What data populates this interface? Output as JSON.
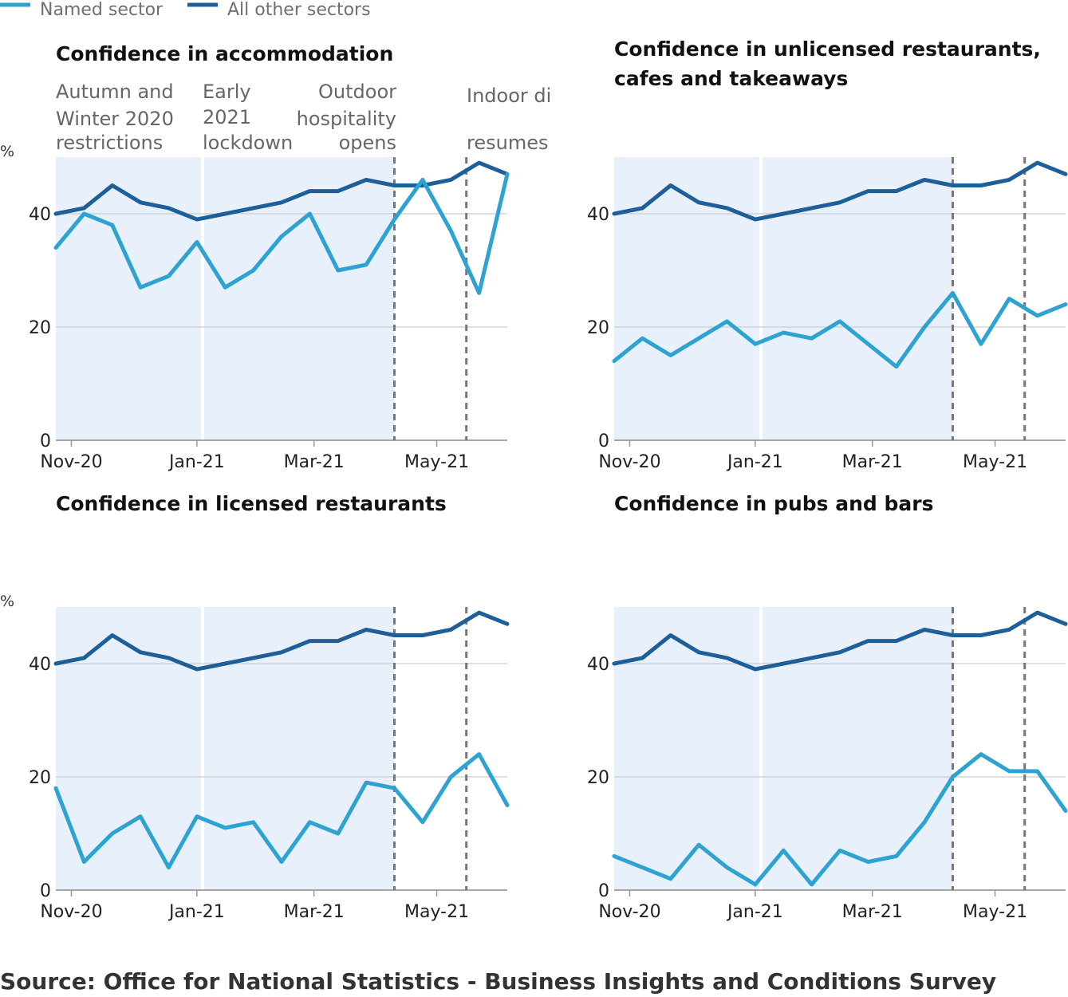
{
  "legend": [
    {
      "label": "Named sector",
      "color": "#2ea3d2"
    },
    {
      "label": "All other sectors",
      "color": "#1f5f99"
    }
  ],
  "source": "Source: Office for National Statistics - Business Insights and Conditions Survey",
  "colors": {
    "named": "#2ea3d2",
    "other": "#1f5f99",
    "shade": "#e8f1fb",
    "grid": "#cccccc",
    "dash": "#777777"
  },
  "annotations": [
    {
      "lines": [
        "Autumn and",
        "Winter 2020",
        "restrictions"
      ]
    },
    {
      "lines": [
        "Early",
        "2021",
        "lockdown"
      ]
    },
    {
      "lines": [
        "Outdoor",
        "hospitality",
        "opens"
      ]
    },
    {
      "lines": [
        "Indoor di",
        "",
        "resumes"
      ]
    }
  ],
  "chart_data": [
    {
      "type": "line",
      "title": [
        "Confidence in accommodation"
      ],
      "ylabel": "%",
      "ylim": [
        0,
        50
      ],
      "yticks": [
        0,
        20,
        40
      ],
      "xticks": [
        "Nov-20",
        "Jan-21",
        "Mar-21",
        "May-21"
      ],
      "series": [
        {
          "name": "All other sectors",
          "values": [
            40,
            41,
            45,
            42,
            41,
            39,
            40,
            41,
            42,
            44,
            44,
            46,
            45,
            45,
            46,
            49,
            47
          ]
        },
        {
          "name": "Named sector",
          "values": [
            34,
            40,
            38,
            27,
            29,
            35,
            27,
            30,
            36,
            40,
            30,
            31,
            39,
            46,
            37,
            26,
            47
          ]
        }
      ]
    },
    {
      "type": "line",
      "title": [
        "Confidence in unlicensed restaurants,",
        "cafes and takeaways"
      ],
      "ylabel": "",
      "ylim": [
        0,
        50
      ],
      "yticks": [
        0,
        20,
        40
      ],
      "xticks": [
        "Nov-20",
        "Jan-21",
        "Mar-21",
        "May-21"
      ],
      "series": [
        {
          "name": "All other sectors",
          "values": [
            40,
            41,
            45,
            42,
            41,
            39,
            40,
            41,
            42,
            44,
            44,
            46,
            45,
            45,
            46,
            49,
            47
          ]
        },
        {
          "name": "Named sector",
          "values": [
            14,
            18,
            15,
            18,
            21,
            17,
            19,
            18,
            21,
            17,
            13,
            20,
            26,
            17,
            25,
            22,
            24
          ]
        }
      ]
    },
    {
      "type": "line",
      "title": [
        "Confidence in licensed restaurants"
      ],
      "ylabel": "%",
      "ylim": [
        0,
        50
      ],
      "yticks": [
        0,
        20,
        40
      ],
      "xticks": [
        "Nov-20",
        "Jan-21",
        "Mar-21",
        "May-21"
      ],
      "series": [
        {
          "name": "All other sectors",
          "values": [
            40,
            41,
            45,
            42,
            41,
            39,
            40,
            41,
            42,
            44,
            44,
            46,
            45,
            45,
            46,
            49,
            47
          ]
        },
        {
          "name": "Named sector",
          "values": [
            18,
            5,
            10,
            13,
            4,
            13,
            11,
            12,
            5,
            12,
            10,
            19,
            18,
            12,
            20,
            24,
            15
          ]
        }
      ]
    },
    {
      "type": "line",
      "title": [
        "Confidence in pubs and bars"
      ],
      "ylabel": "",
      "ylim": [
        0,
        50
      ],
      "yticks": [
        0,
        20,
        40
      ],
      "xticks": [
        "Nov-20",
        "Jan-21",
        "Mar-21",
        "May-21"
      ],
      "series": [
        {
          "name": "All other sectors",
          "values": [
            40,
            41,
            45,
            42,
            41,
            39,
            40,
            41,
            42,
            44,
            44,
            46,
            45,
            45,
            46,
            49,
            47
          ]
        },
        {
          "name": "Named sector",
          "values": [
            6,
            4,
            2,
            8,
            4,
            1,
            7,
            1,
            7,
            5,
            6,
            12,
            20,
            24,
            21,
            21,
            14
          ]
        }
      ]
    }
  ]
}
